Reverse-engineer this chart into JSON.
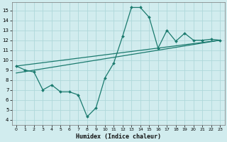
{
  "xlabel": "Humidex (Indice chaleur)",
  "bg_color": "#d1ecee",
  "grid_color": "#afd8da",
  "line_color": "#1a7a6e",
  "xlim": [
    -0.5,
    23.5
  ],
  "ylim": [
    3.5,
    15.8
  ],
  "yticks": [
    4,
    5,
    6,
    7,
    8,
    9,
    10,
    11,
    12,
    13,
    14,
    15
  ],
  "xticks": [
    0,
    1,
    2,
    3,
    4,
    5,
    6,
    7,
    8,
    9,
    10,
    11,
    12,
    13,
    14,
    15,
    16,
    17,
    18,
    19,
    20,
    21,
    22,
    23
  ],
  "line1_x": [
    0,
    1,
    2,
    3,
    4,
    5,
    6,
    7,
    8,
    9,
    10,
    11,
    12,
    13,
    14,
    15,
    16,
    17,
    18,
    19,
    20,
    21,
    22,
    23
  ],
  "line1_y": [
    9.4,
    9.0,
    8.8,
    7.0,
    7.5,
    6.8,
    6.8,
    6.5,
    4.3,
    5.2,
    8.2,
    9.7,
    12.4,
    15.3,
    15.3,
    14.3,
    11.2,
    13.0,
    11.9,
    12.7,
    12.0,
    12.0,
    12.1,
    12.0
  ],
  "line2_x": [
    0,
    23
  ],
  "line2_y": [
    9.4,
    12.0
  ],
  "line3_x": [
    0,
    23
  ],
  "line3_y": [
    8.7,
    12.0
  ]
}
